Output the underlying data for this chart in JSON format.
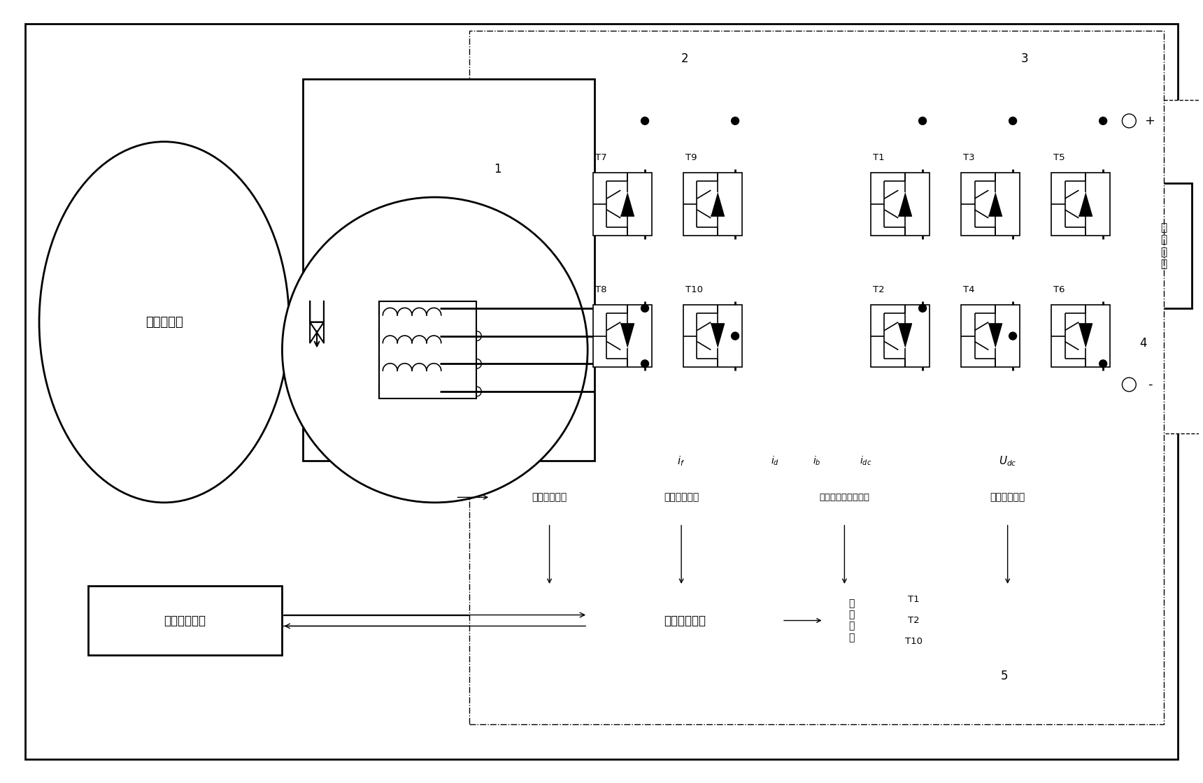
{
  "bg_color": "#ffffff",
  "igbt_labels_top": [
    "T7",
    "T9",
    "T1",
    "T3",
    "T5"
  ],
  "igbt_labels_bot": [
    "T8",
    "T10",
    "T2",
    "T4",
    "T6"
  ],
  "sensor_labels": [
    "转子位置检测",
    "励磁电流检测",
    "电枢电流检测及选择",
    "母线电压检测"
  ],
  "if_label": "i_f",
  "id_label": "i_d",
  "ib_label": "i_b",
  "idc_label": "i_{dc}",
  "udc_label": "U_{dc}",
  "engine_label": "车载发动机",
  "gen_num": "1",
  "block2_num": "2",
  "block3_num": "3",
  "storage_label": "储\n能\n装\n置",
  "storage_num": "4",
  "mcu_label": "单片机处理器",
  "drive_label": "驱\n动\n电\n路",
  "vcu_label": "整车控制单元",
  "drive_T1": "T1",
  "drive_T2": "T2",
  "drive_T10": "T10",
  "system_num": "5"
}
